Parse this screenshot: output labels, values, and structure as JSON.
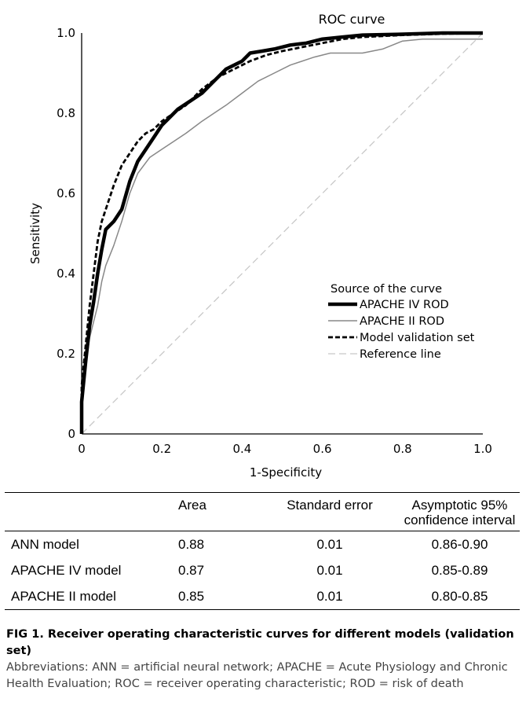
{
  "chart_data": {
    "type": "line",
    "title": "ROC curve",
    "xlabel": "1-Specificity",
    "ylabel": "Sensitivity",
    "xlim": [
      0,
      1
    ],
    "ylim": [
      0,
      1
    ],
    "x_ticks": [
      "0",
      "0.2",
      "0.4",
      "0.6",
      "0.8",
      "1.0"
    ],
    "y_ticks": [
      "0",
      "0.2",
      "0.4",
      "0.6",
      "0.8",
      "1.0"
    ],
    "grid": false,
    "legend_position": "bottom-right",
    "legend_title": "Source of the curve",
    "series": [
      {
        "name": "APACHE IV ROD",
        "style": "solid-thick",
        "color": "#000000",
        "points": [
          [
            0,
            0
          ],
          [
            0,
            0.08
          ],
          [
            0.01,
            0.18
          ],
          [
            0.02,
            0.27
          ],
          [
            0.03,
            0.33
          ],
          [
            0.04,
            0.4
          ],
          [
            0.05,
            0.46
          ],
          [
            0.06,
            0.51
          ],
          [
            0.08,
            0.53
          ],
          [
            0.1,
            0.56
          ],
          [
            0.12,
            0.63
          ],
          [
            0.14,
            0.68
          ],
          [
            0.16,
            0.71
          ],
          [
            0.18,
            0.74
          ],
          [
            0.2,
            0.77
          ],
          [
            0.22,
            0.79
          ],
          [
            0.24,
            0.81
          ],
          [
            0.27,
            0.83
          ],
          [
            0.3,
            0.85
          ],
          [
            0.33,
            0.88
          ],
          [
            0.36,
            0.91
          ],
          [
            0.4,
            0.93
          ],
          [
            0.42,
            0.95
          ],
          [
            0.45,
            0.955
          ],
          [
            0.48,
            0.96
          ],
          [
            0.52,
            0.97
          ],
          [
            0.56,
            0.975
          ],
          [
            0.6,
            0.985
          ],
          [
            0.65,
            0.99
          ],
          [
            0.7,
            0.995
          ],
          [
            0.8,
            0.997
          ],
          [
            0.9,
            1.0
          ],
          [
            1.0,
            1.0
          ]
        ]
      },
      {
        "name": "APACHE II ROD",
        "style": "solid-thin",
        "color": "#888888",
        "points": [
          [
            0,
            0
          ],
          [
            0,
            0.1
          ],
          [
            0.01,
            0.17
          ],
          [
            0.02,
            0.24
          ],
          [
            0.03,
            0.28
          ],
          [
            0.04,
            0.32
          ],
          [
            0.05,
            0.38
          ],
          [
            0.06,
            0.42
          ],
          [
            0.08,
            0.47
          ],
          [
            0.1,
            0.53
          ],
          [
            0.12,
            0.6
          ],
          [
            0.14,
            0.65
          ],
          [
            0.17,
            0.69
          ],
          [
            0.2,
            0.71
          ],
          [
            0.23,
            0.73
          ],
          [
            0.26,
            0.75
          ],
          [
            0.3,
            0.78
          ],
          [
            0.33,
            0.8
          ],
          [
            0.36,
            0.82
          ],
          [
            0.4,
            0.85
          ],
          [
            0.44,
            0.88
          ],
          [
            0.48,
            0.9
          ],
          [
            0.52,
            0.92
          ],
          [
            0.58,
            0.94
          ],
          [
            0.62,
            0.95
          ],
          [
            0.7,
            0.95
          ],
          [
            0.75,
            0.96
          ],
          [
            0.8,
            0.98
          ],
          [
            0.85,
            0.985
          ],
          [
            0.9,
            0.985
          ],
          [
            1.0,
            0.985
          ]
        ]
      },
      {
        "name": "Model validation set",
        "style": "dashed",
        "color": "#000000",
        "points": [
          [
            0,
            0
          ],
          [
            0,
            0.12
          ],
          [
            0.01,
            0.22
          ],
          [
            0.02,
            0.32
          ],
          [
            0.03,
            0.4
          ],
          [
            0.04,
            0.48
          ],
          [
            0.05,
            0.53
          ],
          [
            0.06,
            0.56
          ],
          [
            0.08,
            0.62
          ],
          [
            0.1,
            0.67
          ],
          [
            0.12,
            0.7
          ],
          [
            0.14,
            0.73
          ],
          [
            0.16,
            0.75
          ],
          [
            0.18,
            0.76
          ],
          [
            0.2,
            0.78
          ],
          [
            0.23,
            0.8
          ],
          [
            0.26,
            0.82
          ],
          [
            0.3,
            0.86
          ],
          [
            0.34,
            0.89
          ],
          [
            0.38,
            0.91
          ],
          [
            0.42,
            0.93
          ],
          [
            0.46,
            0.945
          ],
          [
            0.5,
            0.955
          ],
          [
            0.55,
            0.965
          ],
          [
            0.6,
            0.975
          ],
          [
            0.65,
            0.985
          ],
          [
            0.7,
            0.99
          ],
          [
            0.8,
            0.995
          ],
          [
            0.9,
            0.998
          ],
          [
            1.0,
            1.0
          ]
        ]
      },
      {
        "name": "Reference line",
        "style": "dashed-light",
        "color": "#c8c8c8",
        "points": [
          [
            0,
            0
          ],
          [
            1,
            1
          ]
        ]
      }
    ]
  },
  "table": {
    "headers": {
      "model": "",
      "area": "Area",
      "se": "Standard error",
      "ci_line1": "Asymptotic 95%",
      "ci_line2": "confidence interval"
    },
    "rows": [
      {
        "model": "ANN model",
        "area": "0.88",
        "se": "0.01",
        "ci": "0.86-0.90"
      },
      {
        "model": "APACHE IV model",
        "area": "0.87",
        "se": "0.01",
        "ci": "0.85-0.89"
      },
      {
        "model": "APACHE II model",
        "area": "0.85",
        "se": "0.01",
        "ci": "0.80-0.85"
      }
    ]
  },
  "caption": {
    "title": "FIG 1.  Receiver operating characteristic curves for different models (validation set)",
    "abbreviations": "Abbreviations: ANN = artificial neural network; APACHE = Acute Physiology and Chronic Health Evaluation; ROC = receiver operating characteristic; ROD = risk of death"
  }
}
